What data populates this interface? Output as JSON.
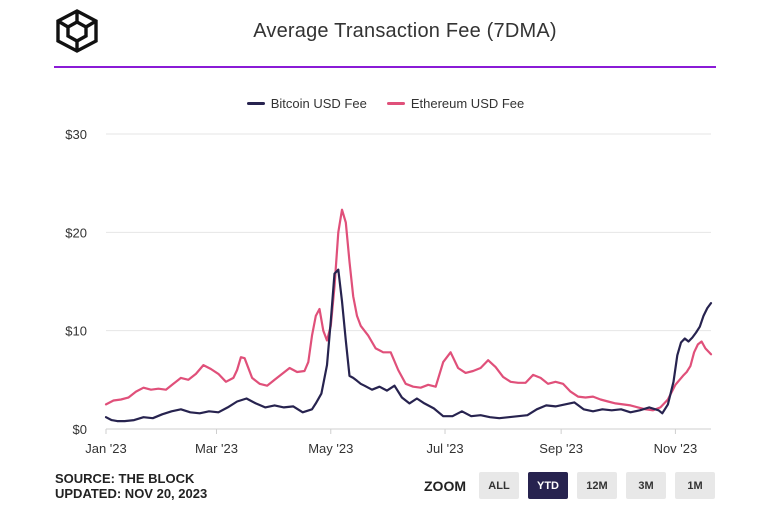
{
  "header": {
    "title": "Average Transaction Fee (7DMA)"
  },
  "footer": {
    "source": "SOURCE: THE BLOCK",
    "updated": "UPDATED: NOV 20, 2023"
  },
  "zoom": {
    "label": "ZOOM",
    "buttons": [
      "ALL",
      "YTD",
      "12M",
      "3M",
      "1M"
    ],
    "active": "YTD"
  },
  "colors": {
    "bitcoin": "#27234f",
    "ethereum": "#e0507a",
    "accent": "#8a1bd6"
  },
  "chart_data": {
    "type": "line",
    "title": "Average Transaction Fee (7DMA)",
    "xlabel": "",
    "ylabel": "",
    "ylim": [
      0,
      30
    ],
    "y_ticks": [
      0,
      10,
      20,
      30
    ],
    "y_tick_labels": [
      "$0",
      "$10",
      "$20",
      "$30"
    ],
    "x_range": [
      0,
      323
    ],
    "x_ticks": [
      0,
      59,
      120,
      181,
      243,
      304
    ],
    "x_tick_labels": [
      "Jan '23",
      "Mar '23",
      "May '23",
      "Jul '23",
      "Sep '23",
      "Nov '23"
    ],
    "grid": true,
    "legend_position": "top-center",
    "series": [
      {
        "name": "Bitcoin USD Fee",
        "color": "#27234f",
        "x": [
          0,
          3,
          6,
          10,
          15,
          20,
          25,
          30,
          35,
          40,
          45,
          50,
          55,
          60,
          65,
          70,
          75,
          80,
          85,
          90,
          95,
          100,
          105,
          110,
          112,
          115,
          118,
          120,
          122,
          124,
          126,
          128,
          130,
          132,
          134,
          136,
          138,
          142,
          146,
          150,
          154,
          158,
          162,
          166,
          170,
          175,
          180,
          185,
          190,
          195,
          200,
          205,
          210,
          215,
          220,
          225,
          230,
          235,
          240,
          245,
          250,
          255,
          260,
          265,
          270,
          275,
          280,
          285,
          290,
          295,
          297,
          300,
          303,
          305,
          307,
          309,
          311,
          313,
          315,
          317,
          319,
          321,
          323
        ],
        "values": [
          1.2,
          0.9,
          0.8,
          0.8,
          0.9,
          1.2,
          1.1,
          1.5,
          1.8,
          2.0,
          1.7,
          1.6,
          1.8,
          1.7,
          2.2,
          2.8,
          3.1,
          2.6,
          2.2,
          2.4,
          2.2,
          2.3,
          1.7,
          2.0,
          2.6,
          3.6,
          6.5,
          11.0,
          15.8,
          16.2,
          13.0,
          9.0,
          5.4,
          5.2,
          4.9,
          4.6,
          4.4,
          4.0,
          4.3,
          3.9,
          4.4,
          3.2,
          2.6,
          3.1,
          2.6,
          2.1,
          1.3,
          1.3,
          1.8,
          1.3,
          1.4,
          1.2,
          1.1,
          1.2,
          1.3,
          1.4,
          2.0,
          2.4,
          2.3,
          2.5,
          2.7,
          2.0,
          1.8,
          2.0,
          1.9,
          2.0,
          1.7,
          1.9,
          2.2,
          1.9,
          1.6,
          2.5,
          4.8,
          7.5,
          8.8,
          9.2,
          8.9,
          9.3,
          9.8,
          10.4,
          11.5,
          12.3,
          12.8
        ]
      },
      {
        "name": "Ethereum USD Fee",
        "color": "#e0507a",
        "x": [
          0,
          4,
          8,
          12,
          16,
          20,
          24,
          28,
          32,
          36,
          40,
          44,
          48,
          52,
          56,
          60,
          64,
          68,
          70,
          72,
          74,
          78,
          82,
          86,
          90,
          94,
          98,
          102,
          106,
          108,
          110,
          112,
          114,
          116,
          118,
          120,
          122,
          124,
          126,
          128,
          130,
          132,
          134,
          136,
          140,
          144,
          148,
          152,
          156,
          160,
          164,
          168,
          172,
          176,
          180,
          184,
          188,
          192,
          196,
          200,
          204,
          208,
          212,
          216,
          220,
          224,
          228,
          232,
          236,
          240,
          244,
          248,
          252,
          256,
          260,
          264,
          268,
          272,
          276,
          280,
          284,
          288,
          292,
          296,
          300,
          304,
          308,
          310,
          312,
          314,
          316,
          318,
          320,
          323
        ],
        "values": [
          2.5,
          2.9,
          3.0,
          3.2,
          3.8,
          4.2,
          4.0,
          4.1,
          4.0,
          4.6,
          5.2,
          5.0,
          5.6,
          6.5,
          6.1,
          5.6,
          4.8,
          5.2,
          6.0,
          7.3,
          7.2,
          5.2,
          4.6,
          4.4,
          5.0,
          5.6,
          6.2,
          5.8,
          5.9,
          6.8,
          9.5,
          11.5,
          12.2,
          10.0,
          9.0,
          10.5,
          14.5,
          20.0,
          22.3,
          21.0,
          17.0,
          13.5,
          11.5,
          10.5,
          9.5,
          8.2,
          7.8,
          7.8,
          6.0,
          4.6,
          4.3,
          4.2,
          4.5,
          4.3,
          6.8,
          7.8,
          6.2,
          5.7,
          5.9,
          6.2,
          7.0,
          6.3,
          5.3,
          4.8,
          4.7,
          4.7,
          5.5,
          5.2,
          4.6,
          4.8,
          4.6,
          3.8,
          3.3,
          3.2,
          3.3,
          3.0,
          2.8,
          2.6,
          2.5,
          2.4,
          2.2,
          2.0,
          1.9,
          2.2,
          3.0,
          4.5,
          5.4,
          5.8,
          6.4,
          7.8,
          8.6,
          8.9,
          8.2,
          7.6
        ]
      }
    ]
  }
}
